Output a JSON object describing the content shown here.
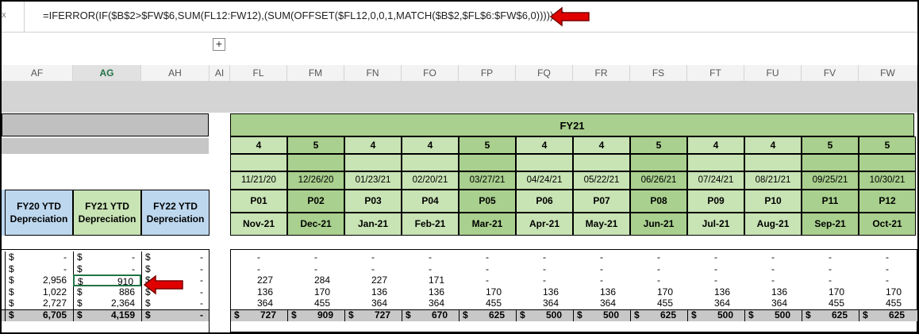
{
  "formula_bar": {
    "fx_label": "x",
    "formula": "=IFERROR(IF($B$2>$FW$6,SUM(FL12:FW12),(SUM(OFFSET($FL12,0,0,1,MATCH($B$2,$FL$6:$FW$6,0))))),0)"
  },
  "expand_label": "+",
  "columns": [
    "AF",
    "AG",
    "AH",
    "AI",
    "FL",
    "FM",
    "FN",
    "FO",
    "FP",
    "FQ",
    "FR",
    "FS",
    "FT",
    "FU",
    "FV",
    "FW"
  ],
  "selected_column": "AG",
  "fy_title": "FY21",
  "week_counts": [
    "4",
    "5",
    "4",
    "4",
    "5",
    "4",
    "4",
    "5",
    "4",
    "4",
    "5",
    "5"
  ],
  "dates": [
    "11/21/20",
    "12/26/20",
    "01/23/21",
    "02/20/21",
    "03/27/21",
    "04/24/21",
    "05/22/21",
    "06/26/21",
    "07/24/21",
    "08/21/21",
    "09/25/21",
    "10/30/21"
  ],
  "periods": [
    "P01",
    "P02",
    "P03",
    "P04",
    "P05",
    "P06",
    "P07",
    "P08",
    "P09",
    "P10",
    "P11",
    "P12"
  ],
  "months": [
    "Nov-21",
    "Dec-21",
    "Jan-21",
    "Feb-21",
    "Mar-21",
    "Apr-21",
    "May-21",
    "Jun-21",
    "Jul-21",
    "Aug-21",
    "Sep-21",
    "Oct-21"
  ],
  "ytd_headers": [
    {
      "line1": "FY20 YTD",
      "line2": "Depreciation"
    },
    {
      "line1": "FY21 YTD",
      "line2": "Depreciation"
    },
    {
      "line1": "FY22 YTD",
      "line2": "Depreciation"
    }
  ],
  "currency": "$",
  "ytd_rows": [
    [
      "-",
      "-",
      "-"
    ],
    [
      "-",
      "-",
      "-"
    ],
    [
      "2,956",
      "910",
      "-"
    ],
    [
      "1,022",
      "886",
      "-"
    ],
    [
      "2,727",
      "2,364",
      "-"
    ],
    [
      "6,705",
      "4,159",
      "-"
    ]
  ],
  "monthly_rows": [
    [
      "-",
      "-",
      "-",
      "-",
      "-",
      "-",
      "-",
      "-",
      "-",
      "-",
      "-",
      "-"
    ],
    [
      "-",
      "-",
      "-",
      "-",
      "-",
      "-",
      "-",
      "-",
      "-",
      "-",
      "-",
      "-"
    ],
    [
      "227",
      "284",
      "227",
      "171",
      "-",
      "-",
      "-",
      "-",
      "-",
      "-",
      "-",
      "-"
    ],
    [
      "136",
      "170",
      "136",
      "136",
      "170",
      "136",
      "136",
      "170",
      "136",
      "136",
      "170",
      "170"
    ],
    [
      "364",
      "455",
      "364",
      "364",
      "455",
      "364",
      "364",
      "455",
      "364",
      "364",
      "455",
      "455"
    ],
    [
      "727",
      "909",
      "727",
      "670",
      "625",
      "500",
      "500",
      "625",
      "500",
      "500",
      "625",
      "625"
    ]
  ],
  "colors": {
    "green_light": "#c8e3b4",
    "green_dark": "#a9d08e",
    "blue": "#bdd7ee",
    "gray": "#d4d4d4",
    "arrow": "#e00000",
    "excel_green": "#217346"
  }
}
